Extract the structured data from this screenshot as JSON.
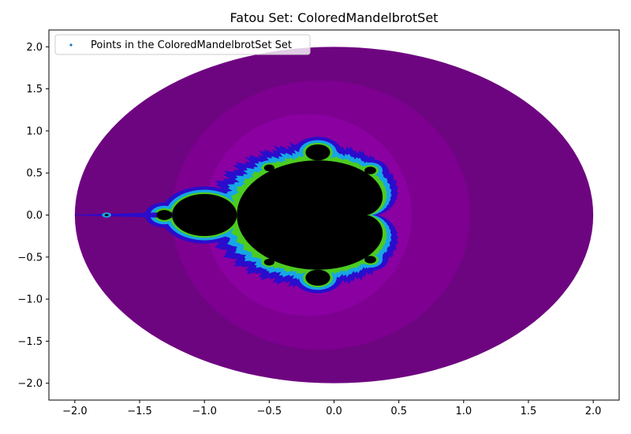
{
  "chart_data": {
    "type": "scatter",
    "title": "Fatou Set: ColoredMandelbrotSet",
    "xlabel": "",
    "ylabel": "",
    "xlim": [
      -2.2,
      2.2
    ],
    "ylim": [
      -2.2,
      2.2
    ],
    "x_ticks": [
      -2.0,
      -1.5,
      -1.0,
      -0.5,
      0.0,
      0.5,
      1.0,
      1.5,
      2.0
    ],
    "x_tick_labels": [
      "−2.0",
      "−1.5",
      "−1.0",
      "−0.5",
      "0.0",
      "0.5",
      "1.0",
      "1.5",
      "2.0"
    ],
    "y_ticks": [
      2.0,
      1.5,
      1.0,
      0.5,
      0.0,
      -0.5,
      -1.0,
      -1.5,
      -2.0
    ],
    "y_tick_labels": [
      "2.0",
      "1.5",
      "1.0",
      "0.5",
      "0.0",
      "−0.5",
      "−1.0",
      "−1.5",
      "−2.0"
    ],
    "grid": false,
    "legend": {
      "position": "upper-left",
      "entries": [
        "Points in the ColoredMandelbrotSet Set"
      ]
    },
    "series": [
      {
        "name": "Points in the ColoredMandelbrotSet Set",
        "domain": "points c with |c| <= 2 colored by escape iteration",
        "center": [
          0.0,
          0.0
        ],
        "radius": 2.0
      }
    ],
    "colors": {
      "outer": "#6e0580",
      "mid": "#7d0090",
      "inner": "#8a00a0",
      "band_blue": "#2a0ccc",
      "band_cyan": "#17a6e6",
      "band_green": "#4ccc20",
      "set": "#000000",
      "legend_marker": "#1f77b4"
    }
  }
}
